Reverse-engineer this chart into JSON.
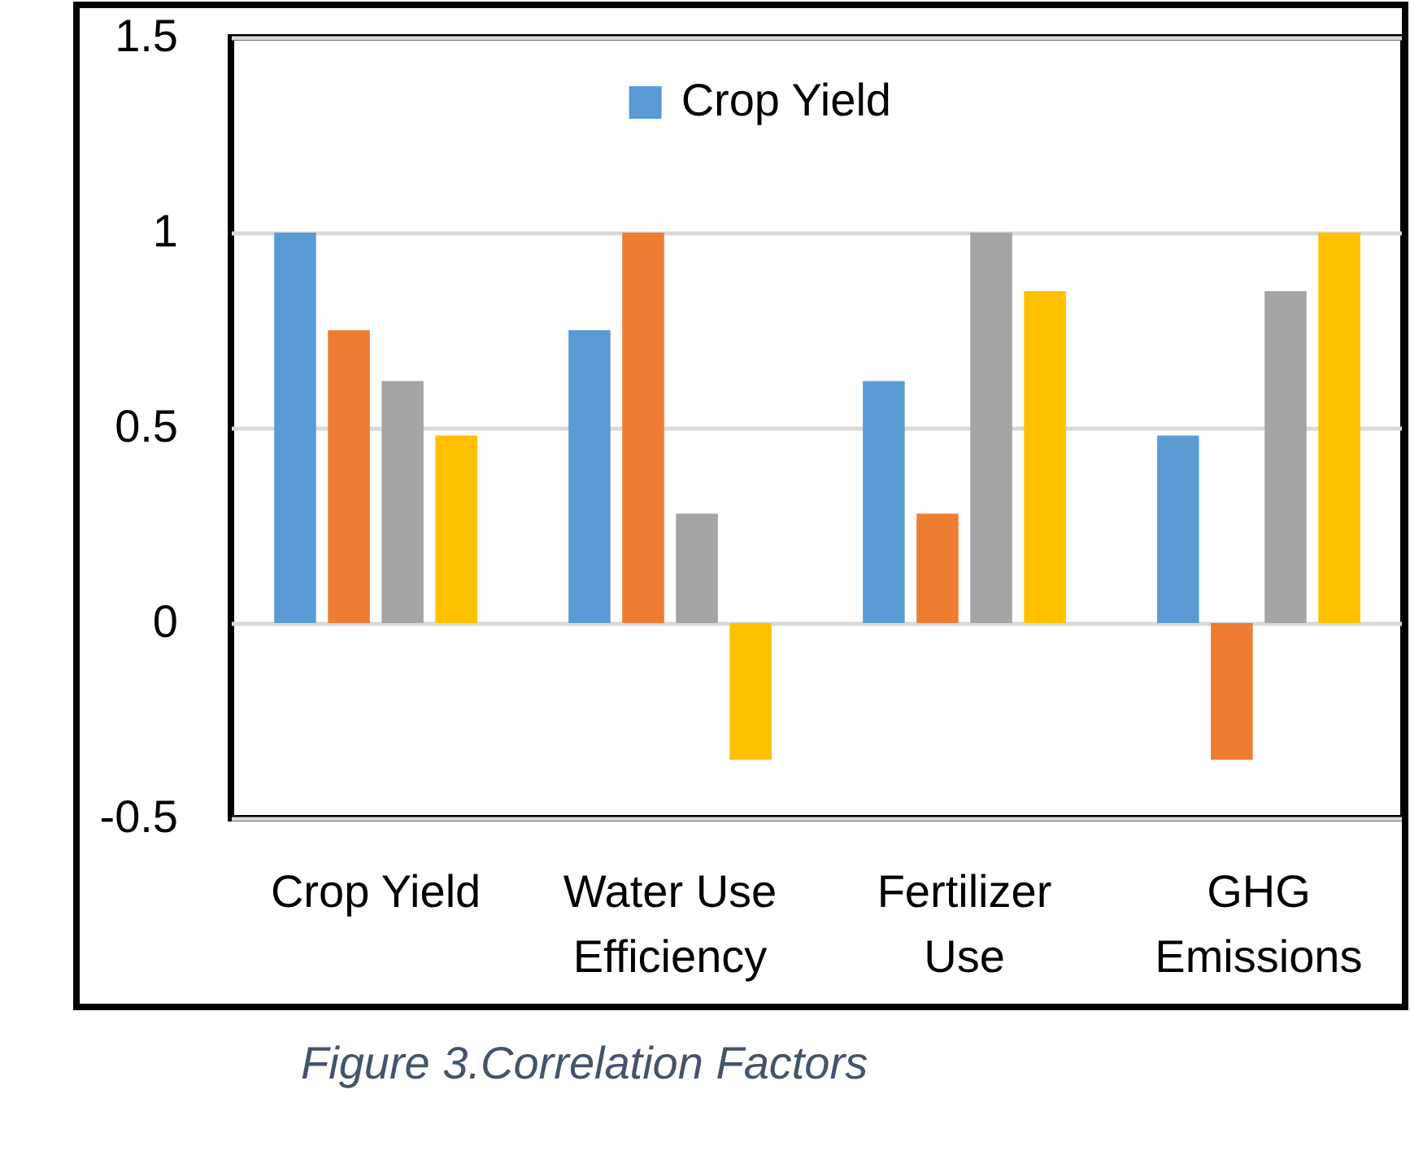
{
  "chart_data": {
    "type": "bar",
    "categories": [
      "Crop Yield",
      "Water Use Efficiency",
      "Fertilizer Use",
      "GHG Emissions"
    ],
    "series": [
      {
        "name": "Crop Yield",
        "color": "#5b9bd5",
        "values": [
          1,
          0.75,
          0.62,
          0.48
        ]
      },
      {
        "color": "#ed7d31",
        "values": [
          0.75,
          1,
          0.28,
          -0.35
        ]
      },
      {
        "color": "#a5a5a5",
        "values": [
          0.62,
          0.28,
          1,
          0.85
        ]
      },
      {
        "color": "#ffc000",
        "values": [
          0.48,
          -0.35,
          0.85,
          1
        ]
      }
    ],
    "ylim": [
      -0.5,
      1.5
    ],
    "yticks": [
      -0.5,
      0,
      0.5,
      1,
      1.5
    ],
    "grid": "y",
    "legend": "top",
    "annotations": [
      "Figure 3.Correlation Factors"
    ]
  }
}
